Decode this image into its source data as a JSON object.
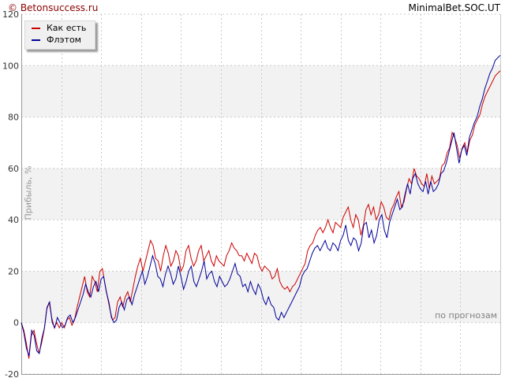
{
  "header": {
    "copyright": "© Betonsuccess.ru",
    "title": "MinimalBet.SOC.UT"
  },
  "colors": {
    "series1": "#cc0000",
    "series2": "#000099",
    "band": "#f2f2f2",
    "grid": "#c8c8c8",
    "axis": "#999999"
  },
  "chart_data": {
    "type": "line",
    "title": "MinimalBet.SOC.UT",
    "xlabel": "по прогнозам",
    "ylabel": "Прибыль, %",
    "ylim": [
      -20,
      120
    ],
    "y_ticks": [
      "120",
      "100",
      "80",
      "60",
      "40",
      "20",
      "0",
      "-20"
    ],
    "grid": true,
    "legend": "top-left",
    "series": [
      {
        "name": "Как есть",
        "color": "#cc0000",
        "values": [
          0,
          -3,
          -8,
          -14,
          -5,
          -3,
          -8,
          -12,
          -8,
          -3,
          5,
          8,
          2,
          -2,
          0,
          -2,
          0,
          -2,
          1,
          2,
          -1,
          1,
          6,
          10,
          14,
          18,
          12,
          10,
          18,
          16,
          12,
          20,
          21,
          15,
          10,
          5,
          1,
          2,
          8,
          10,
          6,
          10,
          12,
          8,
          13,
          18,
          22,
          25,
          20,
          24,
          28,
          32,
          30,
          25,
          24,
          20,
          26,
          30,
          27,
          22,
          24,
          28,
          26,
          20,
          22,
          28,
          30,
          25,
          22,
          24,
          28,
          30,
          24,
          26,
          28,
          24,
          22,
          26,
          24,
          23,
          22,
          26,
          28,
          31,
          29,
          28,
          26,
          26,
          24,
          27,
          25,
          23,
          27,
          26,
          22,
          20,
          22,
          21,
          20,
          17,
          18,
          21,
          16,
          14,
          13,
          14,
          12,
          14,
          15,
          17,
          19,
          21,
          23,
          28,
          30,
          31,
          34,
          36,
          37,
          35,
          37,
          40,
          37,
          35,
          39,
          38,
          37,
          41,
          43,
          45,
          40,
          37,
          42,
          40,
          34,
          38,
          44,
          46,
          42,
          45,
          40,
          42,
          47,
          45,
          41,
          40,
          44,
          46,
          49,
          51,
          45,
          47,
          52,
          56,
          54,
          60,
          57,
          56,
          54,
          53,
          58,
          52,
          57,
          54,
          55,
          56,
          61,
          62,
          66,
          68,
          74,
          72,
          69,
          64,
          68,
          70,
          66,
          71,
          73,
          77,
          79,
          81,
          85,
          88,
          90,
          92,
          94,
          96,
          97,
          98
        ]
      },
      {
        "name": "Флэтом",
        "color": "#000099",
        "values": [
          0,
          -4,
          -10,
          -13,
          -3,
          -5,
          -11,
          -12,
          -6,
          -2,
          6,
          8,
          0,
          -2,
          2,
          0,
          -2,
          -1,
          2,
          3,
          0,
          2,
          5,
          8,
          11,
          15,
          12,
          10,
          14,
          16,
          12,
          17,
          18,
          12,
          8,
          2,
          0,
          1,
          6,
          8,
          5,
          9,
          10,
          7,
          11,
          14,
          17,
          20,
          15,
          18,
          22,
          26,
          23,
          18,
          17,
          14,
          19,
          22,
          19,
          15,
          17,
          22,
          18,
          13,
          16,
          20,
          22,
          16,
          14,
          17,
          20,
          24,
          17,
          19,
          20,
          16,
          14,
          18,
          16,
          14,
          15,
          17,
          20,
          23,
          19,
          18,
          14,
          15,
          12,
          16,
          13,
          11,
          15,
          13,
          9,
          7,
          10,
          7,
          6,
          2,
          1,
          4,
          2,
          4,
          6,
          8,
          10,
          12,
          14,
          18,
          20,
          21,
          24,
          27,
          29,
          30,
          28,
          30,
          32,
          29,
          28,
          31,
          30,
          28,
          32,
          34,
          38,
          32,
          30,
          33,
          32,
          28,
          31,
          38,
          39,
          33,
          36,
          31,
          34,
          40,
          42,
          36,
          33,
          39,
          42,
          45,
          48,
          44,
          45,
          50,
          54,
          50,
          56,
          58,
          54,
          52,
          51,
          55,
          50,
          55,
          51,
          52,
          54,
          58,
          59,
          62,
          66,
          70,
          74,
          68,
          62,
          67,
          69,
          65,
          72,
          75,
          78,
          80,
          84,
          87,
          91,
          94,
          97,
          99,
          102,
          103,
          104
        ]
      }
    ]
  }
}
